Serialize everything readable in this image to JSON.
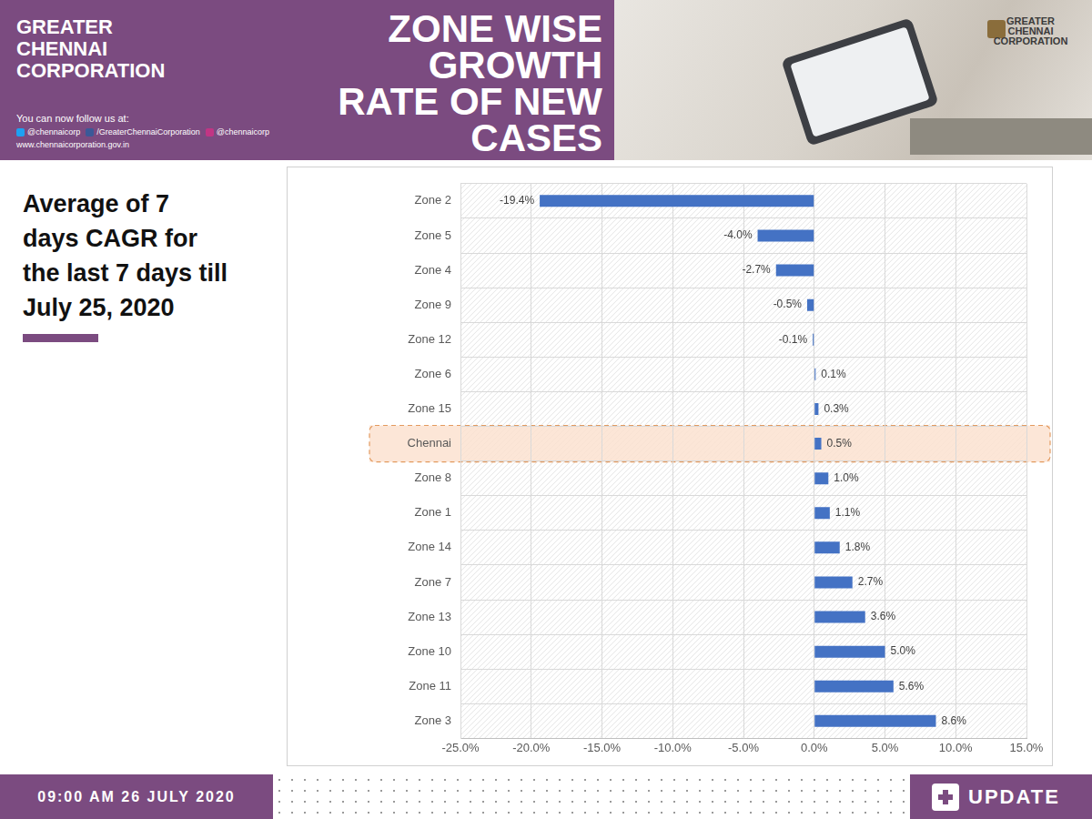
{
  "page": {
    "header": {
      "org_lines": [
        "GREATER",
        "CHENNAI",
        "CORPORATION"
      ],
      "follow_text": "You can now follow us at:",
      "social": [
        "@chennaicorp",
        "/GreaterChennaiCorporation",
        "@chennaicorp"
      ],
      "website": "www.chennaicorporation.gov.in",
      "title_lines": [
        "ZONE WISE",
        "GROWTH",
        "RATE OF NEW",
        "CASES"
      ],
      "logo_lines": [
        "GREATER",
        "CHENNAI",
        "CORPORATION"
      ]
    },
    "side_note_lines": [
      "Average of 7",
      "days CAGR for",
      "the last 7 days till",
      "July 25, 2020"
    ],
    "footer": {
      "timestamp": "09:00 AM 26 JULY 2020",
      "badge": "UPDATE"
    }
  },
  "chart_data": {
    "type": "bar",
    "orientation": "horizontal",
    "categories": [
      "Zone 2",
      "Zone 5",
      "Zone 4",
      "Zone 9",
      "Zone 12",
      "Zone 6",
      "Zone 15",
      "Chennai",
      "Zone 8",
      "Zone 1",
      "Zone 14",
      "Zone 7",
      "Zone 13",
      "Zone 10",
      "Zone 11",
      "Zone 3"
    ],
    "values": [
      -19.4,
      -4.0,
      -2.7,
      -0.5,
      -0.1,
      0.1,
      0.3,
      0.5,
      1.0,
      1.1,
      1.8,
      2.7,
      3.6,
      5.0,
      5.6,
      8.6
    ],
    "value_labels": [
      "-19.4%",
      "-4.0%",
      "-2.7%",
      "-0.5%",
      "-0.1%",
      "0.1%",
      "0.3%",
      "0.5%",
      "1.0%",
      "1.1%",
      "1.8%",
      "2.7%",
      "3.6%",
      "5.0%",
      "5.6%",
      "8.6%"
    ],
    "color": "#4472c4",
    "data_labels": true,
    "grid": true,
    "xlim": [
      -25,
      15
    ],
    "xticks": [
      {
        "value": -25,
        "label": "-25.0%"
      },
      {
        "value": -20,
        "label": "-20.0%"
      },
      {
        "value": -15,
        "label": "-15.0%"
      },
      {
        "value": -10,
        "label": "-10.0%"
      },
      {
        "value": -5,
        "label": "-5.0%"
      },
      {
        "value": 0,
        "label": "0.0%"
      },
      {
        "value": 5,
        "label": "5.0%"
      },
      {
        "value": 10,
        "label": "10.0%"
      },
      {
        "value": 15,
        "label": "15.0%"
      }
    ]
  }
}
